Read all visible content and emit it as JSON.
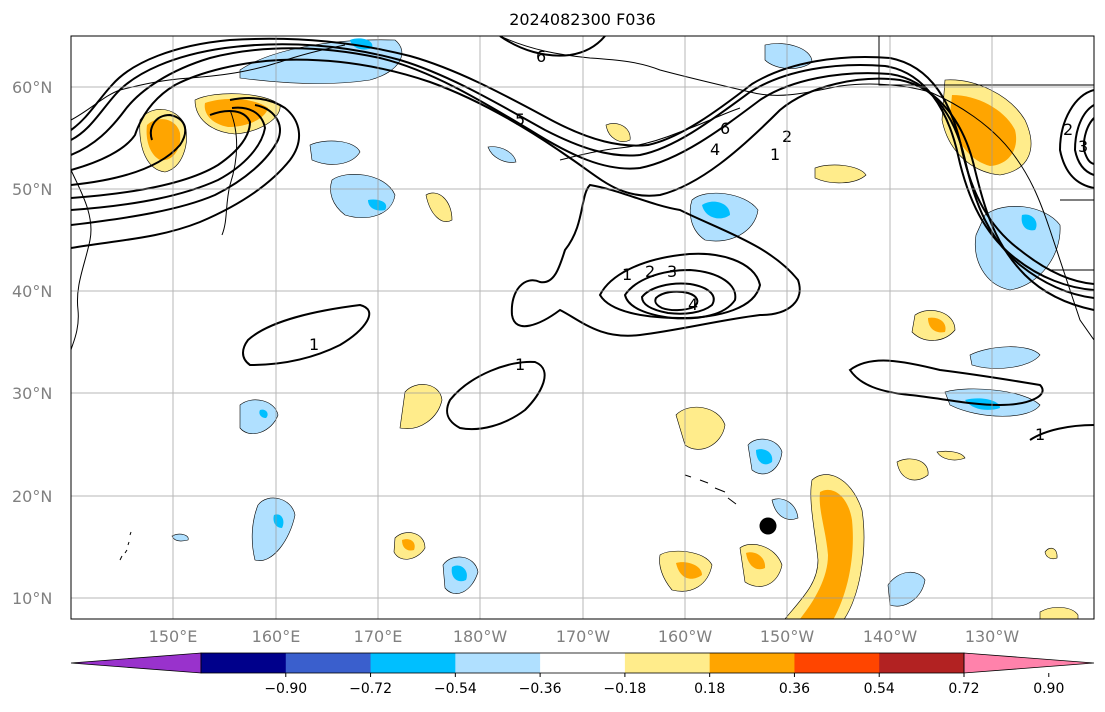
{
  "title": "2024082300 F036",
  "map": {
    "lat_ticks": [
      "60°N",
      "50°N",
      "40°N",
      "30°N",
      "20°N",
      "10°N"
    ],
    "lon_ticks": [
      "150°E",
      "160°E",
      "170°E",
      "180°W",
      "170°W",
      "160°W",
      "150°W",
      "140°W",
      "130°W"
    ],
    "contour_labels": [
      "6",
      "5",
      "6",
      "4",
      "1",
      "2",
      "1",
      "2",
      "3",
      "4",
      "1",
      "1",
      "1",
      "2",
      "3"
    ],
    "marker": "black-dot"
  },
  "colorbar": {
    "labels": [
      "−0.90",
      "−0.72",
      "−0.54",
      "−0.36",
      "−0.18",
      "0.18",
      "0.36",
      "0.54",
      "0.72",
      "0.90"
    ],
    "colors": [
      "#9932cc",
      "#00008b",
      "#3a5fcd",
      "#00bfff",
      "#b0e0ff",
      "#ffffff",
      "#ffec8b",
      "#ffa500",
      "#ff4500",
      "#b22222",
      "#ff82ab"
    ]
  }
}
